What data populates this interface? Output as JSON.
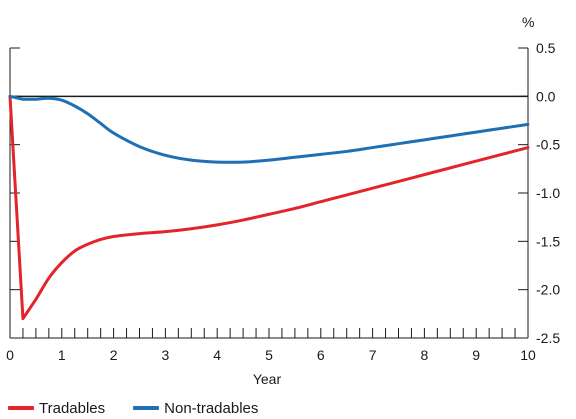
{
  "chart_data": {
    "type": "line",
    "xlabel": "Year",
    "ylabel": "",
    "unit_label": "%",
    "xlim": [
      0,
      10
    ],
    "ylim": [
      -2.5,
      0.5
    ],
    "x_ticks": [
      "0",
      "1",
      "2",
      "3",
      "4",
      "5",
      "6",
      "7",
      "8",
      "9",
      "10"
    ],
    "y_ticks": [
      "0.5",
      "0.0",
      "-0.5",
      "-1.0",
      "-1.5",
      "-2.0",
      "-2.5"
    ],
    "y_tick_values": [
      0.5,
      0.0,
      -0.5,
      -1.0,
      -1.5,
      -2.0,
      -2.5
    ],
    "left_axis_ticks": true,
    "grid": false,
    "legend_position": "bottom-left",
    "series": [
      {
        "name": "Tradables",
        "color": "#e3242b",
        "x": [
          0,
          0.25,
          0.5,
          0.75,
          1.0,
          1.25,
          1.5,
          1.75,
          2.0,
          2.5,
          3.0,
          3.5,
          4.0,
          4.5,
          5.0,
          5.5,
          6.0,
          6.5,
          7.0,
          7.5,
          8.0,
          8.5,
          9.0,
          9.5,
          10.0
        ],
        "y": [
          0,
          -2.3,
          -2.1,
          -1.88,
          -1.72,
          -1.6,
          -1.53,
          -1.48,
          -1.45,
          -1.42,
          -1.4,
          -1.37,
          -1.33,
          -1.28,
          -1.22,
          -1.16,
          -1.09,
          -1.02,
          -0.95,
          -0.88,
          -0.81,
          -0.74,
          -0.67,
          -0.6,
          -0.53
        ]
      },
      {
        "name": "Non-tradables",
        "color": "#1f6fb5",
        "x": [
          0,
          0.25,
          0.5,
          0.75,
          1.0,
          1.25,
          1.5,
          1.75,
          2.0,
          2.5,
          3.0,
          3.5,
          4.0,
          4.5,
          5.0,
          5.5,
          6.0,
          6.5,
          7.0,
          7.5,
          8.0,
          8.5,
          9.0,
          9.5,
          10.0
        ],
        "y": [
          0,
          -0.03,
          -0.03,
          -0.02,
          -0.04,
          -0.1,
          -0.18,
          -0.28,
          -0.38,
          -0.52,
          -0.61,
          -0.66,
          -0.68,
          -0.68,
          -0.66,
          -0.63,
          -0.6,
          -0.57,
          -0.53,
          -0.49,
          -0.45,
          -0.41,
          -0.37,
          -0.33,
          -0.29
        ]
      }
    ]
  }
}
